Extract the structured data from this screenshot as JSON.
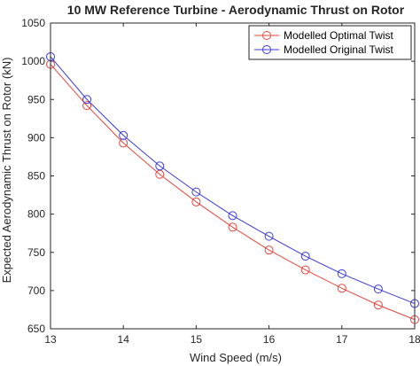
{
  "chart_data": {
    "type": "line",
    "title": "10 MW Reference Turbine - Aerodynamic Thrust on Rotor",
    "xlabel": "Wind Speed (m/s)",
    "ylabel": "Expected Aerodynamic Thrust on Rotor (kN)",
    "xlim": [
      13,
      18
    ],
    "ylim": [
      650,
      1050
    ],
    "xticks": [
      13,
      14,
      15,
      16,
      17,
      18
    ],
    "xtick_labels": [
      "13",
      "14",
      "15",
      "16",
      "17",
      "18"
    ],
    "yticks": [
      650,
      700,
      750,
      800,
      850,
      900,
      950,
      1000,
      1050
    ],
    "ytick_labels": [
      "650",
      "700",
      "750",
      "800",
      "850",
      "900",
      "950",
      "1000",
      "1050"
    ],
    "grid": false,
    "legend_position": "top-right",
    "x": [
      13,
      13.5,
      14,
      14.5,
      15,
      15.5,
      16,
      16.5,
      17,
      17.5,
      18
    ],
    "series": [
      {
        "name": "Modelled Optimal Twist",
        "color": "#e8463c",
        "marker": "circle",
        "values": [
          996,
          942,
          893,
          852,
          816,
          783,
          753,
          727,
          703,
          681,
          662
        ]
      },
      {
        "name": "Modelled Original Twist",
        "color": "#3a3ae0",
        "marker": "circle",
        "values": [
          1006,
          950,
          903,
          863,
          829,
          798,
          771,
          745,
          722,
          702,
          683
        ]
      }
    ]
  }
}
